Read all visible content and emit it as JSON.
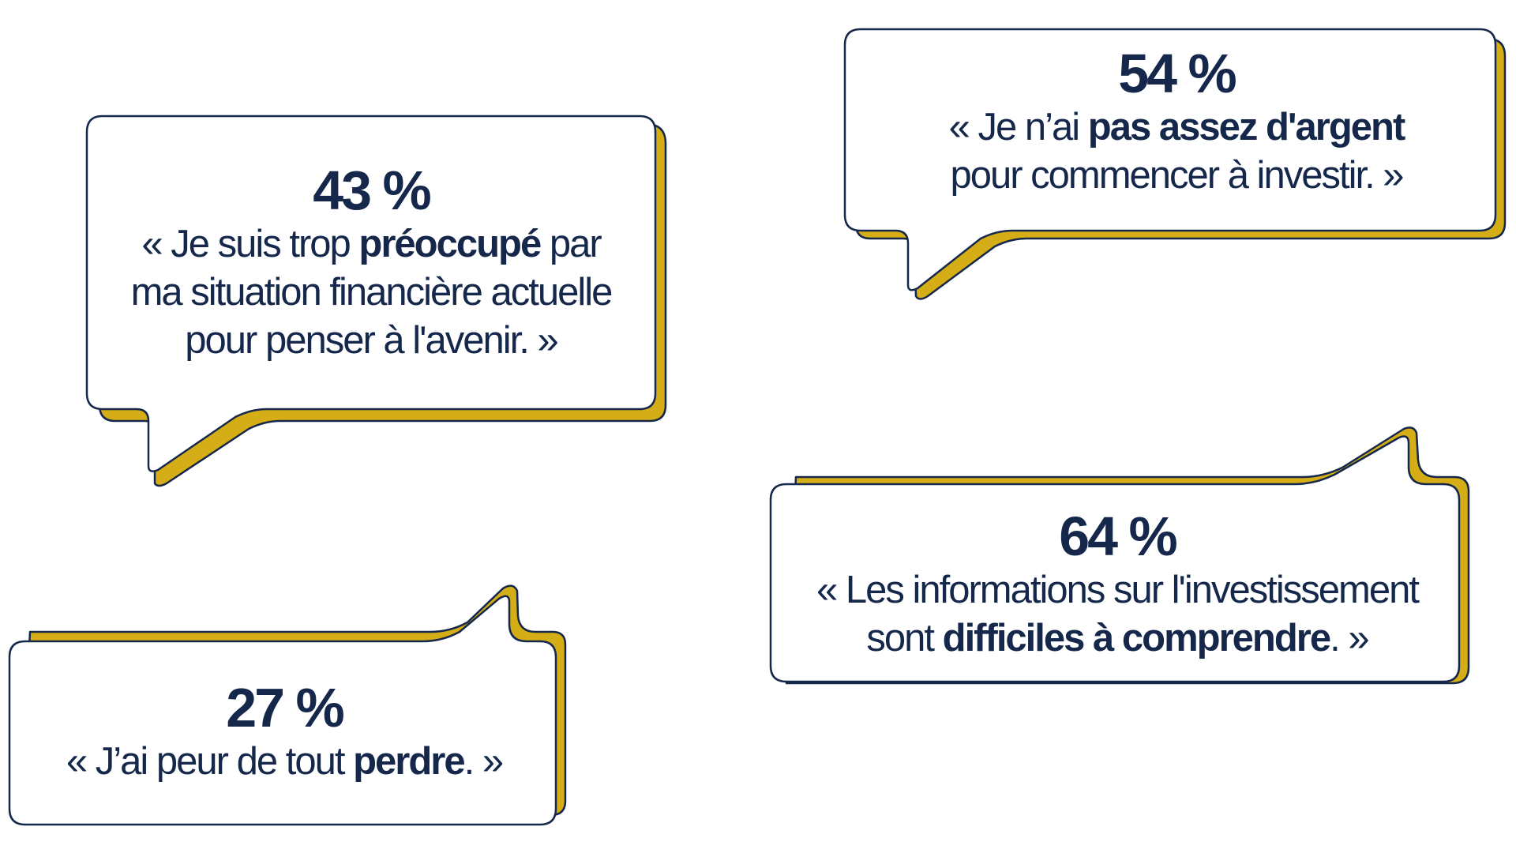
{
  "colors": {
    "text": "#15284b",
    "shadow": "#d5ad16",
    "outline": "#15284b",
    "bubble_fill": "#ffffff",
    "background": "#ffffff"
  },
  "bubbles": [
    {
      "percent": "43 %",
      "quote": [
        {
          "text": "« Je suis trop ",
          "bold": false
        },
        {
          "text": "préoccupé",
          "bold": true
        },
        {
          "text": " par",
          "bold": false
        },
        {
          "br": true
        },
        {
          "text": "ma situation financière actuelle",
          "bold": false
        },
        {
          "br": true
        },
        {
          "text": "pour penser à l'avenir. »",
          "bold": false
        }
      ]
    },
    {
      "percent": "54 %",
      "quote": [
        {
          "text": "« Je n’ai ",
          "bold": false
        },
        {
          "text": "pas assez d'argent",
          "bold": true
        },
        {
          "br": true
        },
        {
          "text": "pour commencer à investir. »",
          "bold": false
        }
      ]
    },
    {
      "percent": "64 %",
      "quote": [
        {
          "text": "« Les informations sur l'investissement",
          "bold": false
        },
        {
          "br": true
        },
        {
          "text": "sont ",
          "bold": false
        },
        {
          "text": "difficiles à comprendre",
          "bold": true
        },
        {
          "text": ". »",
          "bold": false
        }
      ]
    },
    {
      "percent": "27 %",
      "quote": [
        {
          "text": "« J’ai peur de tout ",
          "bold": false
        },
        {
          "text": "perdre",
          "bold": true
        },
        {
          "text": ". »",
          "bold": false
        }
      ]
    }
  ]
}
